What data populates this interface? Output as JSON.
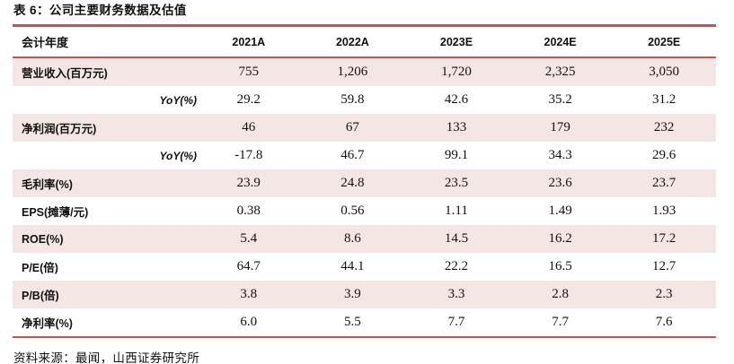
{
  "colors": {
    "accent_red": "#c9524e",
    "row_shade": "#f3e6e4",
    "text": "#111111"
  },
  "table": {
    "title": "表 6：公司主要财务数据及估值",
    "header": {
      "label": "会计年度",
      "years": [
        "2021A",
        "2022A",
        "2023E",
        "2024E",
        "2025E"
      ]
    },
    "rows": [
      {
        "label": "营业收入(百万元)",
        "values": [
          "755",
          "1,206",
          "1,720",
          "2,325",
          "3,050"
        ]
      },
      {
        "label": "YoY(%)",
        "values": [
          "29.2",
          "59.8",
          "42.6",
          "35.2",
          "31.2"
        ]
      },
      {
        "label": "净利润(百万元)",
        "values": [
          "46",
          "67",
          "133",
          "179",
          "232"
        ]
      },
      {
        "label": "YoY(%)",
        "values": [
          "-17.8",
          "46.7",
          "99.1",
          "34.3",
          "29.6"
        ]
      },
      {
        "label": "毛利率(%)",
        "values": [
          "23.9",
          "24.8",
          "23.5",
          "23.6",
          "23.7"
        ]
      },
      {
        "label": "EPS(摊薄/元)",
        "values": [
          "0.38",
          "0.56",
          "1.11",
          "1.49",
          "1.93"
        ]
      },
      {
        "label": "ROE(%)",
        "values": [
          "5.4",
          "8.6",
          "14.5",
          "16.2",
          "17.2"
        ]
      },
      {
        "label": "P/E(倍)",
        "values": [
          "64.7",
          "44.1",
          "22.2",
          "16.5",
          "12.7"
        ]
      },
      {
        "label": "P/B(倍)",
        "values": [
          "3.8",
          "3.9",
          "3.3",
          "2.8",
          "2.3"
        ]
      },
      {
        "label": "净利率(%)",
        "values": [
          "6.0",
          "5.5",
          "7.7",
          "7.7",
          "7.6"
        ]
      }
    ],
    "source": "资料来源：最闻，山西证券研究所"
  }
}
